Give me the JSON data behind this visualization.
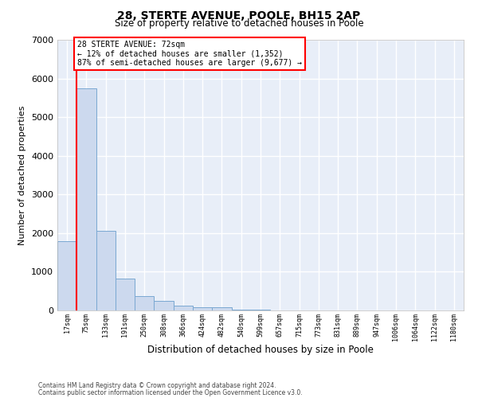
{
  "title": "28, STERTE AVENUE, POOLE, BH15 2AP",
  "subtitle": "Size of property relative to detached houses in Poole",
  "xlabel": "Distribution of detached houses by size in Poole",
  "ylabel": "Number of detached properties",
  "bar_color": "#ccd9ee",
  "bar_edge_color": "#7aa8d2",
  "background_color": "#e8eef8",
  "grid_color": "#ffffff",
  "categories": [
    "17sqm",
    "75sqm",
    "133sqm",
    "191sqm",
    "250sqm",
    "308sqm",
    "366sqm",
    "424sqm",
    "482sqm",
    "540sqm",
    "599sqm",
    "657sqm",
    "715sqm",
    "773sqm",
    "831sqm",
    "889sqm",
    "947sqm",
    "1006sqm",
    "1064sqm",
    "1122sqm",
    "1180sqm"
  ],
  "values": [
    1800,
    5750,
    2060,
    830,
    380,
    240,
    120,
    90,
    80,
    30,
    20,
    10,
    5,
    0,
    0,
    0,
    0,
    0,
    0,
    0,
    0
  ],
  "annotation_box_text": "28 STERTE AVENUE: 72sqm\n← 12% of detached houses are smaller (1,352)\n87% of semi-detached houses are larger (9,677) →",
  "ylim": [
    0,
    7000
  ],
  "red_line_x": 0.5,
  "footnote1": "Contains HM Land Registry data © Crown copyright and database right 2024.",
  "footnote2": "Contains public sector information licensed under the Open Government Licence v3.0."
}
